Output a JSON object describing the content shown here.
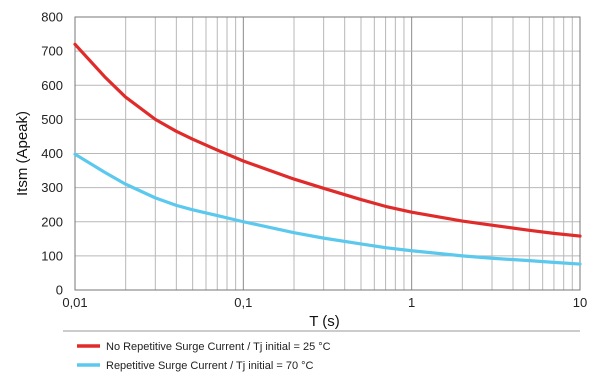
{
  "chart_data": {
    "type": "line",
    "xlabel": "T (s)",
    "ylabel": "Itsm (Apeak)",
    "x_scale": "log",
    "xlim": [
      0.01,
      10
    ],
    "ylim": [
      0,
      800
    ],
    "x_ticks": [
      {
        "value": 0.01,
        "label": "0,01"
      },
      {
        "value": 0.1,
        "label": "0,1"
      },
      {
        "value": 1,
        "label": "1"
      },
      {
        "value": 10,
        "label": "10"
      }
    ],
    "y_ticks": [
      {
        "value": 0,
        "label": "0"
      },
      {
        "value": 100,
        "label": "100"
      },
      {
        "value": 200,
        "label": "200"
      },
      {
        "value": 300,
        "label": "300"
      },
      {
        "value": 400,
        "label": "400"
      },
      {
        "value": 500,
        "label": "500"
      },
      {
        "value": 600,
        "label": "600"
      },
      {
        "value": 700,
        "label": "700"
      },
      {
        "value": 800,
        "label": "800"
      }
    ],
    "grid": true,
    "legend_position": "bottom-left",
    "series": [
      {
        "name": "No Repetitive Surge Current / Tj initial = 25 °C",
        "color": "#e02b2b",
        "x": [
          0.01,
          0.015,
          0.02,
          0.03,
          0.04,
          0.05,
          0.07,
          0.1,
          0.2,
          0.3,
          0.5,
          0.7,
          1,
          2,
          3,
          5,
          7,
          10
        ],
        "y": [
          720,
          625,
          565,
          500,
          465,
          442,
          410,
          378,
          325,
          298,
          265,
          245,
          228,
          202,
          190,
          175,
          166,
          158
        ]
      },
      {
        "name": "Repetitive Surge Current / Tj initial = 70 °C",
        "color": "#5bc8ee",
        "x": [
          0.01,
          0.015,
          0.02,
          0.03,
          0.04,
          0.05,
          0.07,
          0.1,
          0.2,
          0.3,
          0.5,
          0.7,
          1,
          2,
          3,
          5,
          7,
          10
        ],
        "y": [
          398,
          345,
          310,
          270,
          248,
          235,
          218,
          200,
          168,
          152,
          135,
          124,
          115,
          100,
          93,
          86,
          81,
          76
        ]
      }
    ]
  }
}
